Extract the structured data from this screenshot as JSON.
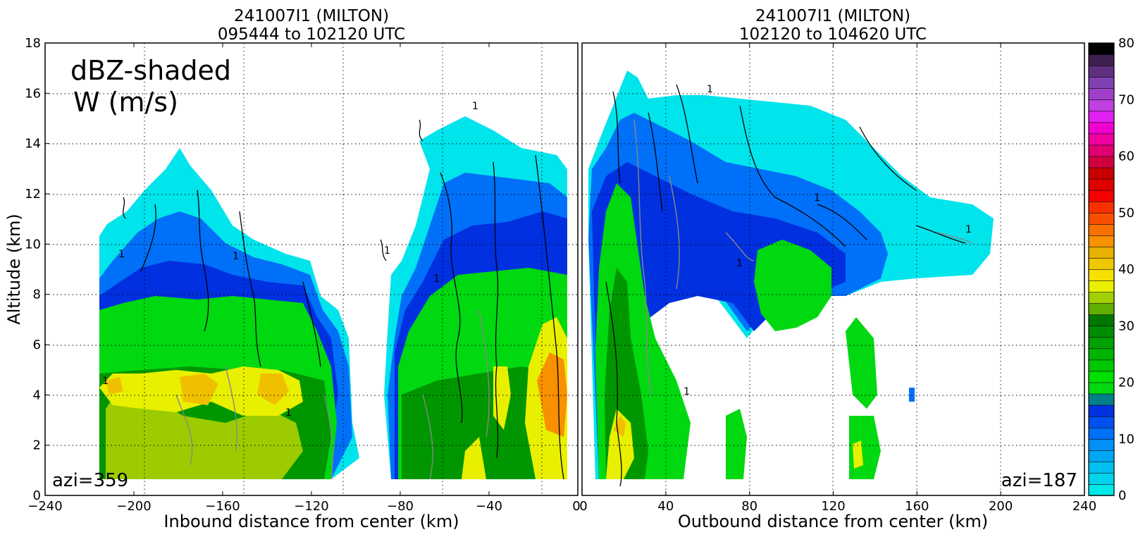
{
  "chart_data": [
    {
      "type": "heatmap",
      "title": "241007I1 (MILTON)",
      "subtitle": "095444 to 102120 UTC",
      "xlabel": "Inbound distance from center (km)",
      "ylabel": "Altitude (km)",
      "xlim": [
        -240,
        0
      ],
      "ylim": [
        0,
        18
      ],
      "xticks": [
        -240,
        -200,
        -160,
        -120,
        -80,
        -40,
        0
      ],
      "yticks": [
        0,
        2,
        4,
        6,
        8,
        10,
        12,
        14,
        16,
        18
      ],
      "grid": true,
      "annotation_main": "dBZ-shaded",
      "annotation_sub": "W (m/s)",
      "azimuth_label": "azi=359",
      "contour_label": "1"
    },
    {
      "type": "heatmap",
      "title": "241007I1 (MILTON)",
      "subtitle": "102120 to 104620 UTC",
      "xlabel": "Outbound distance from center (km)",
      "xlim": [
        0,
        240
      ],
      "ylim": [
        0,
        18
      ],
      "xticks": [
        0,
        40,
        80,
        120,
        160,
        200,
        240
      ],
      "grid": true,
      "azimuth_label": "azi=187",
      "contour_label": "1"
    }
  ],
  "colorbar": {
    "ticks": [
      0,
      10,
      20,
      30,
      40,
      50,
      60,
      70,
      80
    ],
    "colors": [
      "#00e8e8",
      "#00d4ec",
      "#00c0f0",
      "#00a8f4",
      "#0090f8",
      "#0070f8",
      "#0050f0",
      "#0030e0",
      "#00808a",
      "#00d810",
      "#00e000",
      "#00c800",
      "#00b400",
      "#00a000",
      "#008c00",
      "#007800",
      "#60b000",
      "#a0d000",
      "#e8f000",
      "#f8e000",
      "#f0c800",
      "#e8b000",
      "#f89000",
      "#f87000",
      "#f85000",
      "#f83000",
      "#f80000",
      "#e00000",
      "#c80000",
      "#d00040",
      "#e00070",
      "#f000a0",
      "#f000d0",
      "#e020f0",
      "#c040e0",
      "#a040c8",
      "#8040b0",
      "#603080",
      "#402050",
      "#000000"
    ]
  }
}
